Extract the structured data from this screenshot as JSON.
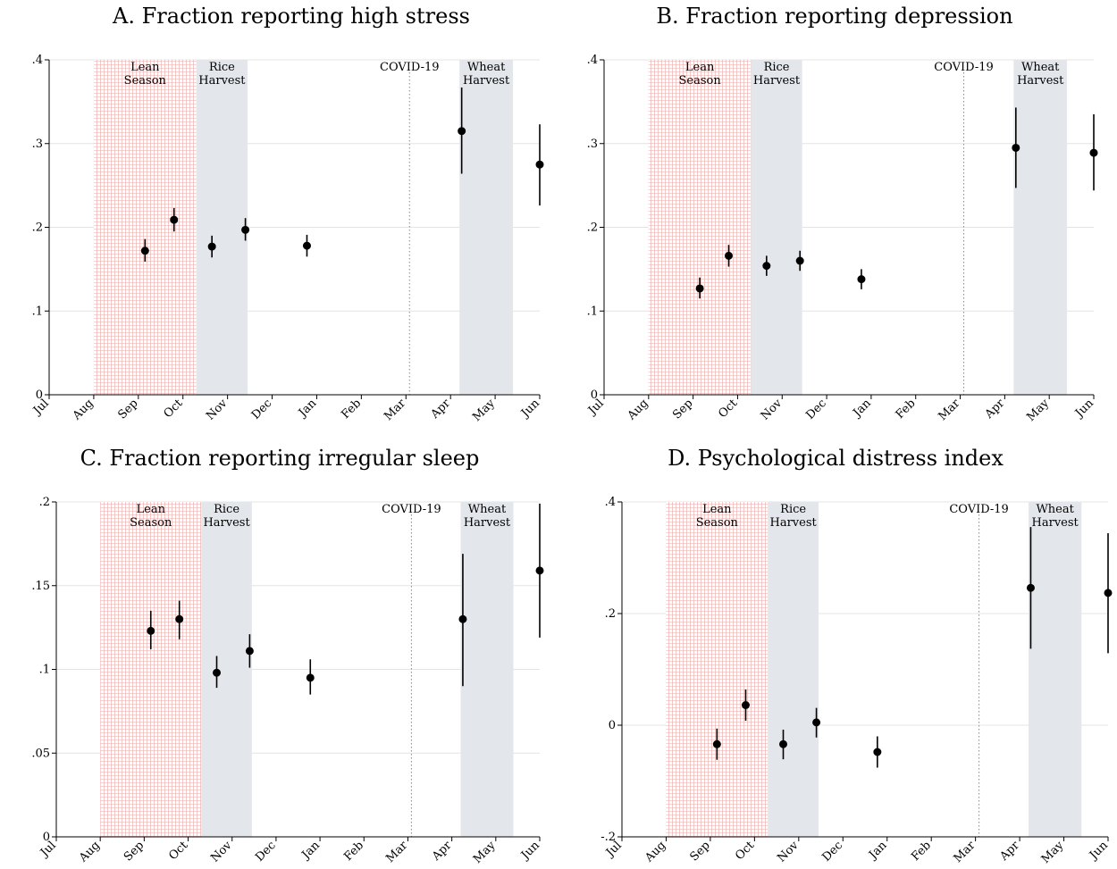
{
  "colors": {
    "lean_hatch": "#e9a7a7",
    "harvest_fill": "#e3e7ec",
    "grid": "#e4e4e4",
    "point": "#000000",
    "covid_line": "#888888"
  },
  "chart_data": [
    {
      "type": "scatter",
      "title": "A. Fraction reporting high stress",
      "xlabel": "",
      "ylabel": "",
      "months": [
        "Jul",
        "Aug",
        "Sep",
        "Oct",
        "Nov",
        "Dec",
        "Jan",
        "Feb",
        "Mar",
        "Apr",
        "May",
        "Jun"
      ],
      "x_range": [
        0,
        11
      ],
      "ylim": [
        0,
        0.4
      ],
      "yticks": [
        0,
        0.1,
        0.2,
        0.3,
        0.4
      ],
      "ytick_labels": [
        "0",
        ".1",
        ".2",
        ".3",
        ".4"
      ],
      "grid": true,
      "shaded_periods": [
        {
          "label": "Lean Season",
          "label_lines": [
            "Lean",
            "Season"
          ],
          "start": 1.0,
          "end": 3.3,
          "style": "lean"
        },
        {
          "label": "Rice Harvest",
          "label_lines": [
            "Rice",
            "Harvest"
          ],
          "start": 3.3,
          "end": 4.45,
          "style": "harvest"
        },
        {
          "label": "Wheat Harvest",
          "label_lines": [
            "Wheat",
            "Harvest"
          ],
          "start": 9.2,
          "end": 10.4,
          "style": "harvest"
        }
      ],
      "events": [
        {
          "label": "COVID-19",
          "x": 8.08
        }
      ],
      "points": [
        {
          "x": 2.15,
          "y": 0.172,
          "lo": 0.159,
          "hi": 0.186
        },
        {
          "x": 2.8,
          "y": 0.209,
          "lo": 0.195,
          "hi": 0.223
        },
        {
          "x": 3.65,
          "y": 0.177,
          "lo": 0.164,
          "hi": 0.19
        },
        {
          "x": 4.4,
          "y": 0.197,
          "lo": 0.184,
          "hi": 0.211
        },
        {
          "x": 5.78,
          "y": 0.178,
          "lo": 0.165,
          "hi": 0.191
        },
        {
          "x": 9.25,
          "y": 0.315,
          "lo": 0.264,
          "hi": 0.367
        },
        {
          "x": 11.0,
          "y": 0.275,
          "lo": 0.226,
          "hi": 0.323
        }
      ]
    },
    {
      "type": "scatter",
      "title": "B. Fraction reporting depression",
      "xlabel": "",
      "ylabel": "",
      "months": [
        "Jul",
        "Aug",
        "Sep",
        "Oct",
        "Nov",
        "Dec",
        "Jan",
        "Feb",
        "Mar",
        "Apr",
        "May",
        "Jun"
      ],
      "x_range": [
        0,
        11
      ],
      "ylim": [
        0,
        0.4
      ],
      "yticks": [
        0,
        0.1,
        0.2,
        0.3,
        0.4
      ],
      "ytick_labels": [
        "0",
        ".1",
        ".2",
        ".3",
        ".4"
      ],
      "grid": true,
      "shaded_periods": [
        {
          "label": "Lean Season",
          "label_lines": [
            "Lean",
            "Season"
          ],
          "start": 1.0,
          "end": 3.3,
          "style": "lean"
        },
        {
          "label": "Rice Harvest",
          "label_lines": [
            "Rice",
            "Harvest"
          ],
          "start": 3.3,
          "end": 4.45,
          "style": "harvest"
        },
        {
          "label": "Wheat Harvest",
          "label_lines": [
            "Wheat",
            "Harvest"
          ],
          "start": 9.2,
          "end": 10.4,
          "style": "harvest"
        }
      ],
      "events": [
        {
          "label": "COVID-19",
          "x": 8.08
        }
      ],
      "points": [
        {
          "x": 2.15,
          "y": 0.127,
          "lo": 0.115,
          "hi": 0.14
        },
        {
          "x": 2.8,
          "y": 0.166,
          "lo": 0.153,
          "hi": 0.179
        },
        {
          "x": 3.65,
          "y": 0.154,
          "lo": 0.142,
          "hi": 0.166
        },
        {
          "x": 4.4,
          "y": 0.16,
          "lo": 0.148,
          "hi": 0.172
        },
        {
          "x": 5.78,
          "y": 0.138,
          "lo": 0.126,
          "hi": 0.15
        },
        {
          "x": 9.25,
          "y": 0.295,
          "lo": 0.247,
          "hi": 0.343
        },
        {
          "x": 11.0,
          "y": 0.289,
          "lo": 0.244,
          "hi": 0.335
        }
      ]
    },
    {
      "type": "scatter",
      "title": "C. Fraction reporting irregular sleep",
      "xlabel": "",
      "ylabel": "",
      "months": [
        "Jul",
        "Aug",
        "Sep",
        "Oct",
        "Nov",
        "Dec",
        "Jan",
        "Feb",
        "Mar",
        "Apr",
        "May",
        "Jun"
      ],
      "x_range": [
        0,
        11
      ],
      "ylim": [
        0,
        0.2
      ],
      "yticks": [
        0,
        0.05,
        0.1,
        0.15,
        0.2
      ],
      "ytick_labels": [
        "0",
        ".05",
        ".1",
        ".15",
        ".2"
      ],
      "grid": true,
      "shaded_periods": [
        {
          "label": "Lean Season",
          "label_lines": [
            "Lean",
            "Season"
          ],
          "start": 1.0,
          "end": 3.3,
          "style": "lean"
        },
        {
          "label": "Rice Harvest",
          "label_lines": [
            "Rice",
            "Harvest"
          ],
          "start": 3.3,
          "end": 4.45,
          "style": "harvest"
        },
        {
          "label": "Wheat Harvest",
          "label_lines": [
            "Wheat",
            "Harvest"
          ],
          "start": 9.2,
          "end": 10.4,
          "style": "harvest"
        }
      ],
      "events": [
        {
          "label": "COVID-19",
          "x": 8.08
        }
      ],
      "points": [
        {
          "x": 2.15,
          "y": 0.123,
          "lo": 0.112,
          "hi": 0.135
        },
        {
          "x": 2.8,
          "y": 0.13,
          "lo": 0.118,
          "hi": 0.141
        },
        {
          "x": 3.65,
          "y": 0.098,
          "lo": 0.089,
          "hi": 0.108
        },
        {
          "x": 4.4,
          "y": 0.111,
          "lo": 0.101,
          "hi": 0.121
        },
        {
          "x": 5.78,
          "y": 0.095,
          "lo": 0.085,
          "hi": 0.106
        },
        {
          "x": 9.25,
          "y": 0.13,
          "lo": 0.09,
          "hi": 0.169
        },
        {
          "x": 11.0,
          "y": 0.159,
          "lo": 0.119,
          "hi": 0.199
        }
      ]
    },
    {
      "type": "scatter",
      "title": "D. Psychological distress index",
      "xlabel": "",
      "ylabel": "",
      "months": [
        "Jul",
        "Aug",
        "Sep",
        "Oct",
        "Nov",
        "Dec",
        "Jan",
        "Feb",
        "Mar",
        "Apr",
        "May",
        "Jun"
      ],
      "x_range": [
        0,
        11
      ],
      "ylim": [
        -0.2,
        0.4
      ],
      "yticks": [
        -0.2,
        0,
        0.2,
        0.4
      ],
      "ytick_labels": [
        "-.2",
        "0",
        ".2",
        ".4"
      ],
      "grid": true,
      "shaded_periods": [
        {
          "label": "Lean Season",
          "label_lines": [
            "Lean",
            "Season"
          ],
          "start": 1.0,
          "end": 3.3,
          "style": "lean"
        },
        {
          "label": "Rice Harvest",
          "label_lines": [
            "Rice",
            "Harvest"
          ],
          "start": 3.3,
          "end": 4.45,
          "style": "harvest"
        },
        {
          "label": "Wheat Harvest",
          "label_lines": [
            "Wheat",
            "Harvest"
          ],
          "start": 9.2,
          "end": 10.4,
          "style": "harvest"
        }
      ],
      "events": [
        {
          "label": "COVID-19",
          "x": 8.08
        }
      ],
      "points": [
        {
          "x": 2.15,
          "y": -0.034,
          "lo": -0.062,
          "hi": -0.006
        },
        {
          "x": 2.8,
          "y": 0.036,
          "lo": 0.008,
          "hi": 0.064
        },
        {
          "x": 3.65,
          "y": -0.034,
          "lo": -0.061,
          "hi": -0.008
        },
        {
          "x": 4.4,
          "y": 0.005,
          "lo": -0.022,
          "hi": 0.031
        },
        {
          "x": 5.78,
          "y": -0.048,
          "lo": -0.076,
          "hi": -0.02
        },
        {
          "x": 9.25,
          "y": 0.246,
          "lo": 0.137,
          "hi": 0.355
        },
        {
          "x": 11.0,
          "y": 0.237,
          "lo": 0.129,
          "hi": 0.344
        }
      ]
    }
  ]
}
